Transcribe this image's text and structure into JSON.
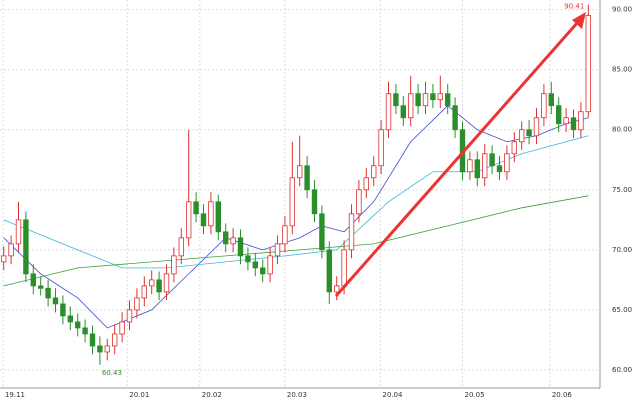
{
  "chart_data": {
    "type": "candlestick",
    "up_color": "#e03030",
    "down_color": "#2a8f2a",
    "xlim": [
      -0.5,
      79.5
    ],
    "xticks": [
      {
        "value": -0.1,
        "label": "19.11"
      },
      {
        "value": 16.7,
        "label": "20.01"
      },
      {
        "value": 26.5,
        "label": "20.02"
      },
      {
        "value": 38,
        "label": "20.03"
      },
      {
        "value": 50.9,
        "label": "20.04"
      },
      {
        "value": 62,
        "label": "20.05"
      },
      {
        "value": 73.8,
        "label": "20.06"
      }
    ],
    "ylim": [
      58.5,
      90.8
    ],
    "yticks": [
      {
        "value": 60,
        "label": "60.00"
      },
      {
        "value": 65,
        "label": "65.00"
      },
      {
        "value": 70,
        "label": "70.00"
      },
      {
        "value": 75,
        "label": "75.00"
      },
      {
        "value": 80,
        "label": "80.00"
      },
      {
        "value": 85,
        "label": "85.00"
      },
      {
        "value": 90,
        "label": "90.00"
      }
    ],
    "grid": true,
    "open": [
      69,
      69.5,
      70.5,
      72.5,
      68,
      67,
      66.8,
      66,
      65.5,
      64.5,
      64,
      63.5,
      63,
      62,
      61.5,
      62,
      63,
      64,
      65,
      66,
      67,
      67.5,
      66.5,
      68,
      69.5,
      71,
      74,
      73,
      72,
      74,
      71.5,
      70.5,
      71,
      69.5,
      69,
      68.5,
      68,
      69.5,
      70.5,
      72,
      76,
      77,
      75,
      73,
      70,
      66.5,
      67,
      70,
      73,
      75,
      76,
      77,
      80,
      83,
      82,
      81,
      83,
      82,
      83,
      82.5,
      83,
      82,
      80,
      76.5,
      77.5,
      76,
      78,
      77,
      76.5,
      78,
      79,
      80,
      79.5,
      81,
      83,
      82,
      80.5,
      81,
      80,
      81.5
    ],
    "high": [
      70.3,
      71.2,
      74,
      73.2,
      68.8,
      67.8,
      67.5,
      66.8,
      66.2,
      65.3,
      64.7,
      64.2,
      63.7,
      62.8,
      62.6,
      63.8,
      64.8,
      65.8,
      66.8,
      67.8,
      68.3,
      68.2,
      68.8,
      70.2,
      71.8,
      80,
      74.8,
      73.8,
      74.8,
      74.6,
      72.2,
      71.8,
      71.7,
      70.2,
      69.7,
      69.2,
      70.2,
      71.2,
      72.8,
      79,
      79.5,
      77.8,
      75.8,
      73.7,
      70.7,
      67.8,
      70.8,
      73.8,
      75.8,
      76.8,
      77.8,
      80.8,
      84,
      83.8,
      82.8,
      84.5,
      83.8,
      84,
      83.8,
      84.5,
      83.8,
      82.7,
      80.7,
      78.2,
      78.2,
      78.8,
      78.7,
      77.8,
      78.7,
      79.8,
      80.7,
      80.8,
      81.8,
      83.8,
      84,
      82.7,
      81.8,
      81.7,
      82.3,
      90.41
    ],
    "low": [
      68.3,
      68.8,
      69.8,
      67.3,
      66.3,
      66.2,
      65.3,
      64.8,
      63.8,
      63.3,
      62.8,
      62.3,
      61.3,
      60.43,
      60.8,
      61.3,
      62.3,
      63.3,
      64.3,
      65.3,
      66.3,
      65.8,
      65.8,
      67.3,
      68.8,
      70.3,
      72.3,
      71.3,
      71.3,
      70.8,
      69.8,
      69.8,
      68.8,
      68.3,
      67.8,
      67.3,
      67.3,
      68.8,
      69.8,
      71.3,
      75.3,
      74.3,
      72.3,
      69.3,
      65.5,
      65.8,
      66.3,
      69.3,
      72.3,
      74.3,
      75.3,
      76.3,
      79.3,
      81.3,
      80.3,
      80.3,
      81.3,
      81.3,
      81.8,
      81.8,
      81.3,
      79.3,
      75.8,
      75.8,
      75.3,
      75.3,
      76.3,
      75.8,
      75.8,
      77.3,
      78.3,
      78.8,
      78.8,
      80.3,
      81.3,
      79.8,
      79.8,
      79.3,
      79.3,
      81
    ],
    "close": [
      69.5,
      70.5,
      72.5,
      68,
      67,
      66.8,
      66,
      65.5,
      64.5,
      64,
      63.5,
      63,
      62,
      61.5,
      62,
      63,
      64,
      65,
      66,
      67,
      67.5,
      66.5,
      68,
      69.5,
      71,
      74,
      73,
      72,
      74,
      71.5,
      70.5,
      71,
      69.5,
      69,
      68.5,
      68,
      69.5,
      70.5,
      72,
      76,
      77,
      75,
      73,
      70,
      66.5,
      67,
      70,
      73,
      75,
      76,
      77,
      80,
      83,
      82,
      81,
      83,
      82,
      83,
      82.5,
      83,
      82,
      80,
      76.5,
      77.5,
      76,
      78,
      77,
      76.5,
      78,
      79,
      80,
      79.5,
      81,
      83,
      82,
      80.5,
      81,
      80,
      81.5,
      89.5
    ],
    "lines": [
      {
        "color": "#3a4fd0",
        "x": [
          0,
          5,
          10,
          14,
          20,
          25,
          30,
          35,
          40,
          43,
          46,
          50,
          55,
          60,
          64,
          68,
          72,
          76,
          79
        ],
        "values": [
          71,
          68,
          66,
          63.5,
          65,
          68,
          71,
          70,
          71,
          72,
          71.5,
          74,
          79,
          82,
          80,
          79,
          79.5,
          80.5,
          81
        ]
      },
      {
        "color": "#38b8d8",
        "x": [
          0,
          10,
          16,
          22,
          30,
          38,
          45,
          52,
          58,
          64,
          70,
          76,
          79
        ],
        "values": [
          72.5,
          70,
          68.5,
          68.5,
          69,
          69.5,
          70,
          74,
          76.5,
          76.5,
          78,
          79,
          79.5
        ]
      },
      {
        "color": "#3aa03a",
        "x": [
          0,
          10,
          20,
          30,
          40,
          50,
          60,
          70,
          79
        ],
        "values": [
          67,
          68.5,
          69,
          69.5,
          70,
          70.5,
          72,
          73.5,
          74.5
        ]
      }
    ]
  }
}
